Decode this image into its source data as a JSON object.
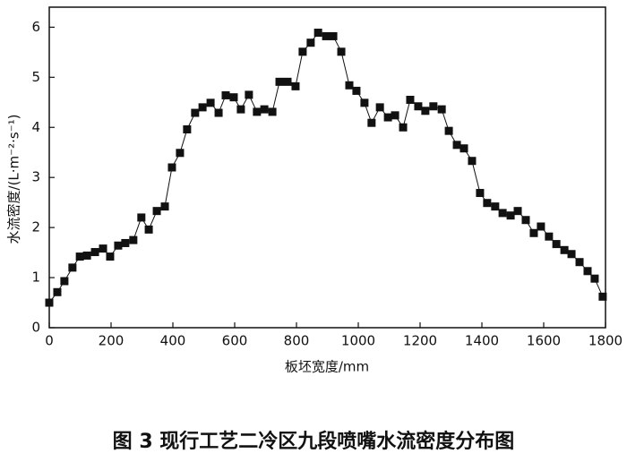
{
  "chart_data": {
    "type": "line",
    "caption": "图 3 现行工艺二冷区九段喷嘴水流密度分布图",
    "x_label": "板坯宽度/mm",
    "y_label": "水流密度/(L·m⁻²·s⁻¹)",
    "x": [
      0,
      26,
      49,
      75,
      99,
      122,
      148,
      174,
      197,
      223,
      246,
      272,
      298,
      322,
      348,
      374,
      397,
      423,
      446,
      472,
      496,
      522,
      548,
      571,
      597,
      620,
      646,
      672,
      696,
      722,
      745,
      771,
      797,
      820,
      846,
      870,
      896,
      919,
      945,
      971,
      994,
      1020,
      1043,
      1070,
      1096,
      1119,
      1145,
      1168,
      1194,
      1217,
      1243,
      1270,
      1293,
      1319,
      1342,
      1368,
      1394,
      1417,
      1443,
      1467,
      1493,
      1516,
      1542,
      1568,
      1591,
      1617,
      1641,
      1667,
      1690,
      1716,
      1742,
      1765,
      1791
    ],
    "series": [
      {
        "color": "#111111",
        "values": [
          0.5,
          0.71,
          0.93,
          1.2,
          1.42,
          1.44,
          1.51,
          1.58,
          1.42,
          1.64,
          1.69,
          1.75,
          2.2,
          1.96,
          2.33,
          2.42,
          3.2,
          3.49,
          3.96,
          4.29,
          4.4,
          4.49,
          4.29,
          4.64,
          4.6,
          4.36,
          4.65,
          4.31,
          4.36,
          4.31,
          4.91,
          4.91,
          4.82,
          5.51,
          5.69,
          5.89,
          5.82,
          5.82,
          5.51,
          4.84,
          4.73,
          4.49,
          4.09,
          4.4,
          4.2,
          4.24,
          4.0,
          4.55,
          4.42,
          4.33,
          4.42,
          4.36,
          3.93,
          3.65,
          3.58,
          3.33,
          2.69,
          2.49,
          2.42,
          2.29,
          2.24,
          2.33,
          2.15,
          1.89,
          2.02,
          1.82,
          1.67,
          1.55,
          1.47,
          1.31,
          1.13,
          0.98,
          0.62
        ]
      }
    ],
    "xlim": [
      0,
      1800
    ],
    "xticks": [
      0,
      200,
      400,
      600,
      800,
      1000,
      1200,
      1400,
      1600,
      1800
    ],
    "ylim": [
      0,
      6.4
    ],
    "yticks": [
      0,
      1,
      2,
      3,
      4,
      5,
      6
    ]
  }
}
